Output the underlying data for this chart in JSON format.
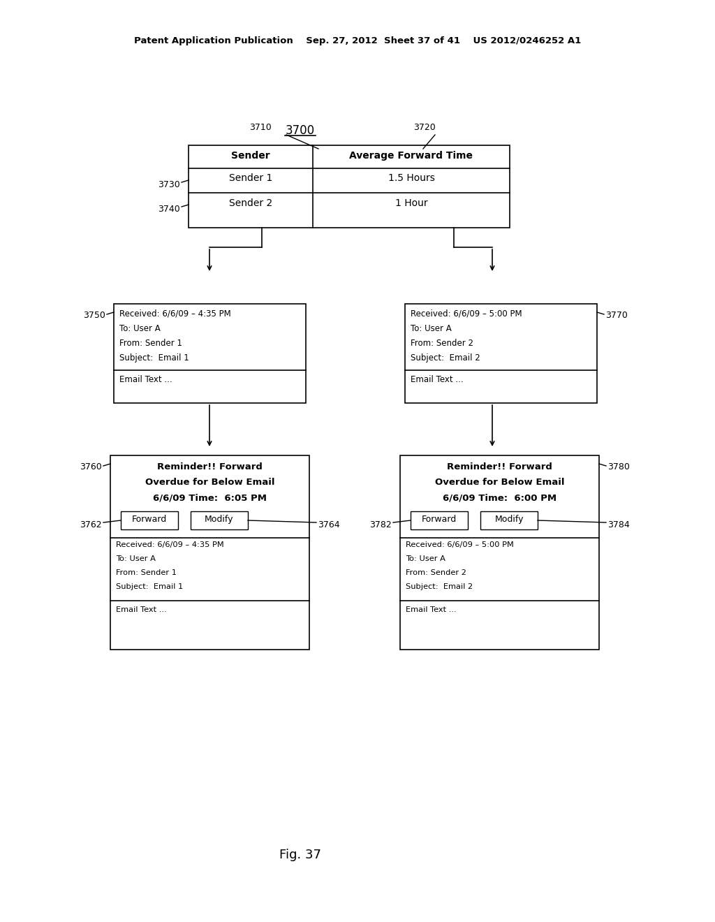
{
  "bg_color": "#ffffff",
  "header_text": "Patent Application Publication    Sep. 27, 2012  Sheet 37 of 41    US 2012/0246252 A1",
  "fig_label": "Fig. 37",
  "diagram_label": "3700",
  "table": {
    "col1_header": "Sender",
    "col2_header": "Average Forward Time",
    "col1_label": "3710",
    "col2_label": "3720",
    "row1_label": "3730",
    "row2_label": "3740",
    "row1": [
      "Sender 1",
      "1.5 Hours"
    ],
    "row2": [
      "Sender 2",
      "1 Hour"
    ]
  },
  "email1": {
    "label": "3750",
    "header_lines": [
      "Received: 6/6/09 – 4:35 PM",
      "To: User A",
      "From: Sender 1",
      "Subject:  Email 1"
    ],
    "body": "Email Text ..."
  },
  "email2": {
    "label": "3770",
    "header_lines": [
      "Received: 6/6/09 – 5:00 PM",
      "To: User A",
      "From: Sender 2",
      "Subject:  Email 2"
    ],
    "body": "Email Text ..."
  },
  "reminder1": {
    "label": "3760",
    "title_lines": [
      "Reminder!! Forward",
      "Overdue for Below Email",
      "6/6/09 Time:  6:05 PM"
    ],
    "btn1": "Forward",
    "btn2": "Modify",
    "btn1_label": "3762",
    "btn2_label": "3764",
    "sub_lines": [
      "Received: 6/6/09 – 4:35 PM",
      "To: User A",
      "From: Sender 1",
      "Subject:  Email 1"
    ],
    "body": "Email Text ..."
  },
  "reminder2": {
    "label": "3780",
    "title_lines": [
      "Reminder!! Forward",
      "Overdue for Below Email",
      "6/6/09 Time:  6:00 PM"
    ],
    "btn1": "Forward",
    "btn2": "Modify",
    "btn1_label": "3782",
    "btn2_label": "3784",
    "sub_lines": [
      "Received: 6/6/09 – 5:00 PM",
      "To: User A",
      "From: Sender 2",
      "Subject:  Email 2"
    ],
    "body": "Email Text ..."
  }
}
